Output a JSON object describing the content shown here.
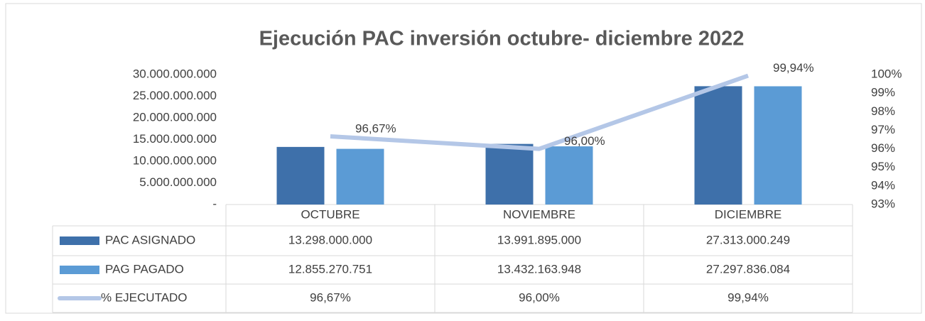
{
  "chart_data": {
    "type": "bar",
    "title": "Ejecución PAC inversión octubre- diciembre 2022",
    "categories": [
      "OCTUBRE",
      "NOVIEMBRE",
      "DICIEMBRE"
    ],
    "series": [
      {
        "name": "PAC ASIGNADO",
        "color": "#3e70aa",
        "values": [
          13298000000,
          13991895000,
          27313000249
        ],
        "value_labels": [
          "13.298.000.000",
          "13.991.895.000",
          "27.313.000.249"
        ]
      },
      {
        "name": "PAG PAGADO",
        "color": "#5b9bd5",
        "values": [
          12855270751,
          13432163948,
          27297836084
        ],
        "value_labels": [
          "12.855.270.751",
          "13.432.163.948",
          "27.297.836.084"
        ]
      },
      {
        "name": "% EJECUTADO",
        "type": "line",
        "axis": "y2",
        "color": "#b4c7e7",
        "values": [
          96.67,
          96.0,
          99.94
        ],
        "value_labels": [
          "96,67%",
          "96,00%",
          "99,94%"
        ]
      }
    ],
    "ylim": [
      0,
      30000000000
    ],
    "yticks": [
      {
        "value": 0,
        "label": "-"
      },
      {
        "value": 5000000000,
        "label": "5.000.000.000"
      },
      {
        "value": 10000000000,
        "label": "10.000.000.000"
      },
      {
        "value": 15000000000,
        "label": "15.000.000.000"
      },
      {
        "value": 20000000000,
        "label": "20.000.000.000"
      },
      {
        "value": 25000000000,
        "label": "25.000.000.000"
      },
      {
        "value": 30000000000,
        "label": "30.000.000.000"
      }
    ],
    "y2lim": [
      93,
      100
    ],
    "y2ticks": [
      {
        "value": 93,
        "label": "93%"
      },
      {
        "value": 94,
        "label": "94%"
      },
      {
        "value": 95,
        "label": "95%"
      },
      {
        "value": 96,
        "label": "96%"
      },
      {
        "value": 97,
        "label": "97%"
      },
      {
        "value": 98,
        "label": "98%"
      },
      {
        "value": 99,
        "label": "99%"
      },
      {
        "value": 100,
        "label": "100%"
      }
    ],
    "grid": false
  }
}
